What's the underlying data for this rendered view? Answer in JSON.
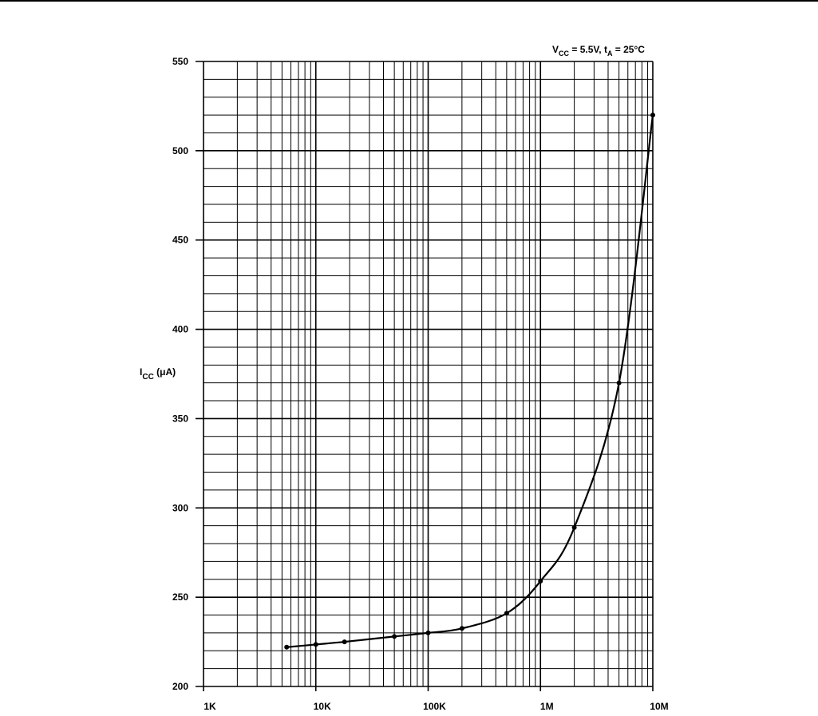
{
  "chart_data": {
    "type": "line",
    "title": "",
    "condition": {
      "v_symbol": "V",
      "v_sub": "CC",
      "v_value": " = 5.5V, ",
      "t_symbol": "t",
      "t_sub": "A",
      "t_value": " = 25°C"
    },
    "ylabel": {
      "symbol": "I",
      "sub": "CC",
      "unit": " (μA)"
    },
    "xlabel": "",
    "x_scale": "log",
    "xlim": [
      1000,
      10000000
    ],
    "ylim": [
      200,
      550
    ],
    "x_ticks": [
      {
        "value": 1000,
        "label": "1K"
      },
      {
        "value": 10000,
        "label": "10K"
      },
      {
        "value": 100000,
        "label": "100K"
      },
      {
        "value": 1000000,
        "label": "1M"
      },
      {
        "value": 10000000,
        "label": "10M"
      }
    ],
    "y_ticks": [
      {
        "value": 200,
        "label": "200"
      },
      {
        "value": 250,
        "label": "250"
      },
      {
        "value": 300,
        "label": "300"
      },
      {
        "value": 350,
        "label": "350"
      },
      {
        "value": 400,
        "label": "400"
      },
      {
        "value": 450,
        "label": "450"
      },
      {
        "value": 500,
        "label": "500"
      },
      {
        "value": 550,
        "label": "550"
      }
    ],
    "y_minor_step": 10,
    "grid": true,
    "series": [
      {
        "points": [
          {
            "x": 5500,
            "y": 222
          },
          {
            "x": 10000,
            "y": 223.5
          },
          {
            "x": 18000,
            "y": 225
          },
          {
            "x": 50000,
            "y": 228
          },
          {
            "x": 100000,
            "y": 230
          },
          {
            "x": 200000,
            "y": 232.5
          },
          {
            "x": 500000,
            "y": 241
          },
          {
            "x": 1000000,
            "y": 259
          },
          {
            "x": 2000000,
            "y": 289
          },
          {
            "x": 5000000,
            "y": 370
          },
          {
            "x": 10000000,
            "y": 520
          }
        ]
      }
    ]
  }
}
